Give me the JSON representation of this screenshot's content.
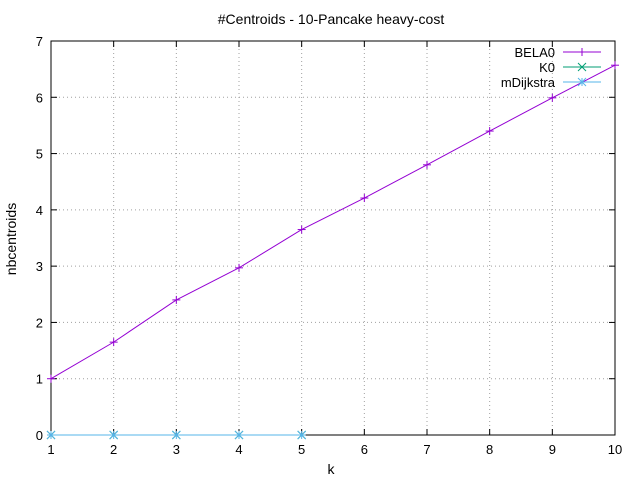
{
  "chart_data": {
    "type": "line",
    "title": "#Centroids - 10-Pancake heavy-cost",
    "xlabel": "k",
    "ylabel": "nbcentroids",
    "xlim": [
      1,
      10
    ],
    "ylim": [
      0,
      7
    ],
    "xticks": [
      "1",
      "2",
      "3",
      "4",
      "5",
      "6",
      "7",
      "8",
      "9",
      "10"
    ],
    "yticks": [
      "0",
      "1",
      "2",
      "3",
      "4",
      "5",
      "6",
      "7"
    ],
    "grid": true,
    "legend_position": "top-right",
    "series": [
      {
        "name": "BELA0",
        "color": "#9400d3",
        "marker": "plus",
        "x": [
          1,
          2,
          3,
          4,
          5,
          6,
          7,
          8,
          9,
          10
        ],
        "y": [
          1.0,
          1.65,
          2.4,
          2.97,
          3.65,
          4.21,
          4.8,
          5.4,
          5.99,
          6.57
        ]
      },
      {
        "name": "K0",
        "color": "#009e73",
        "marker": "cross",
        "x": [
          1,
          2,
          3,
          4,
          5
        ],
        "y": [
          0,
          0,
          0,
          0,
          0
        ]
      },
      {
        "name": "mDijkstra",
        "color": "#56b4e9",
        "marker": "star",
        "x": [
          1,
          2,
          3,
          4,
          5
        ],
        "y": [
          0,
          0,
          0,
          0,
          0
        ]
      }
    ]
  }
}
